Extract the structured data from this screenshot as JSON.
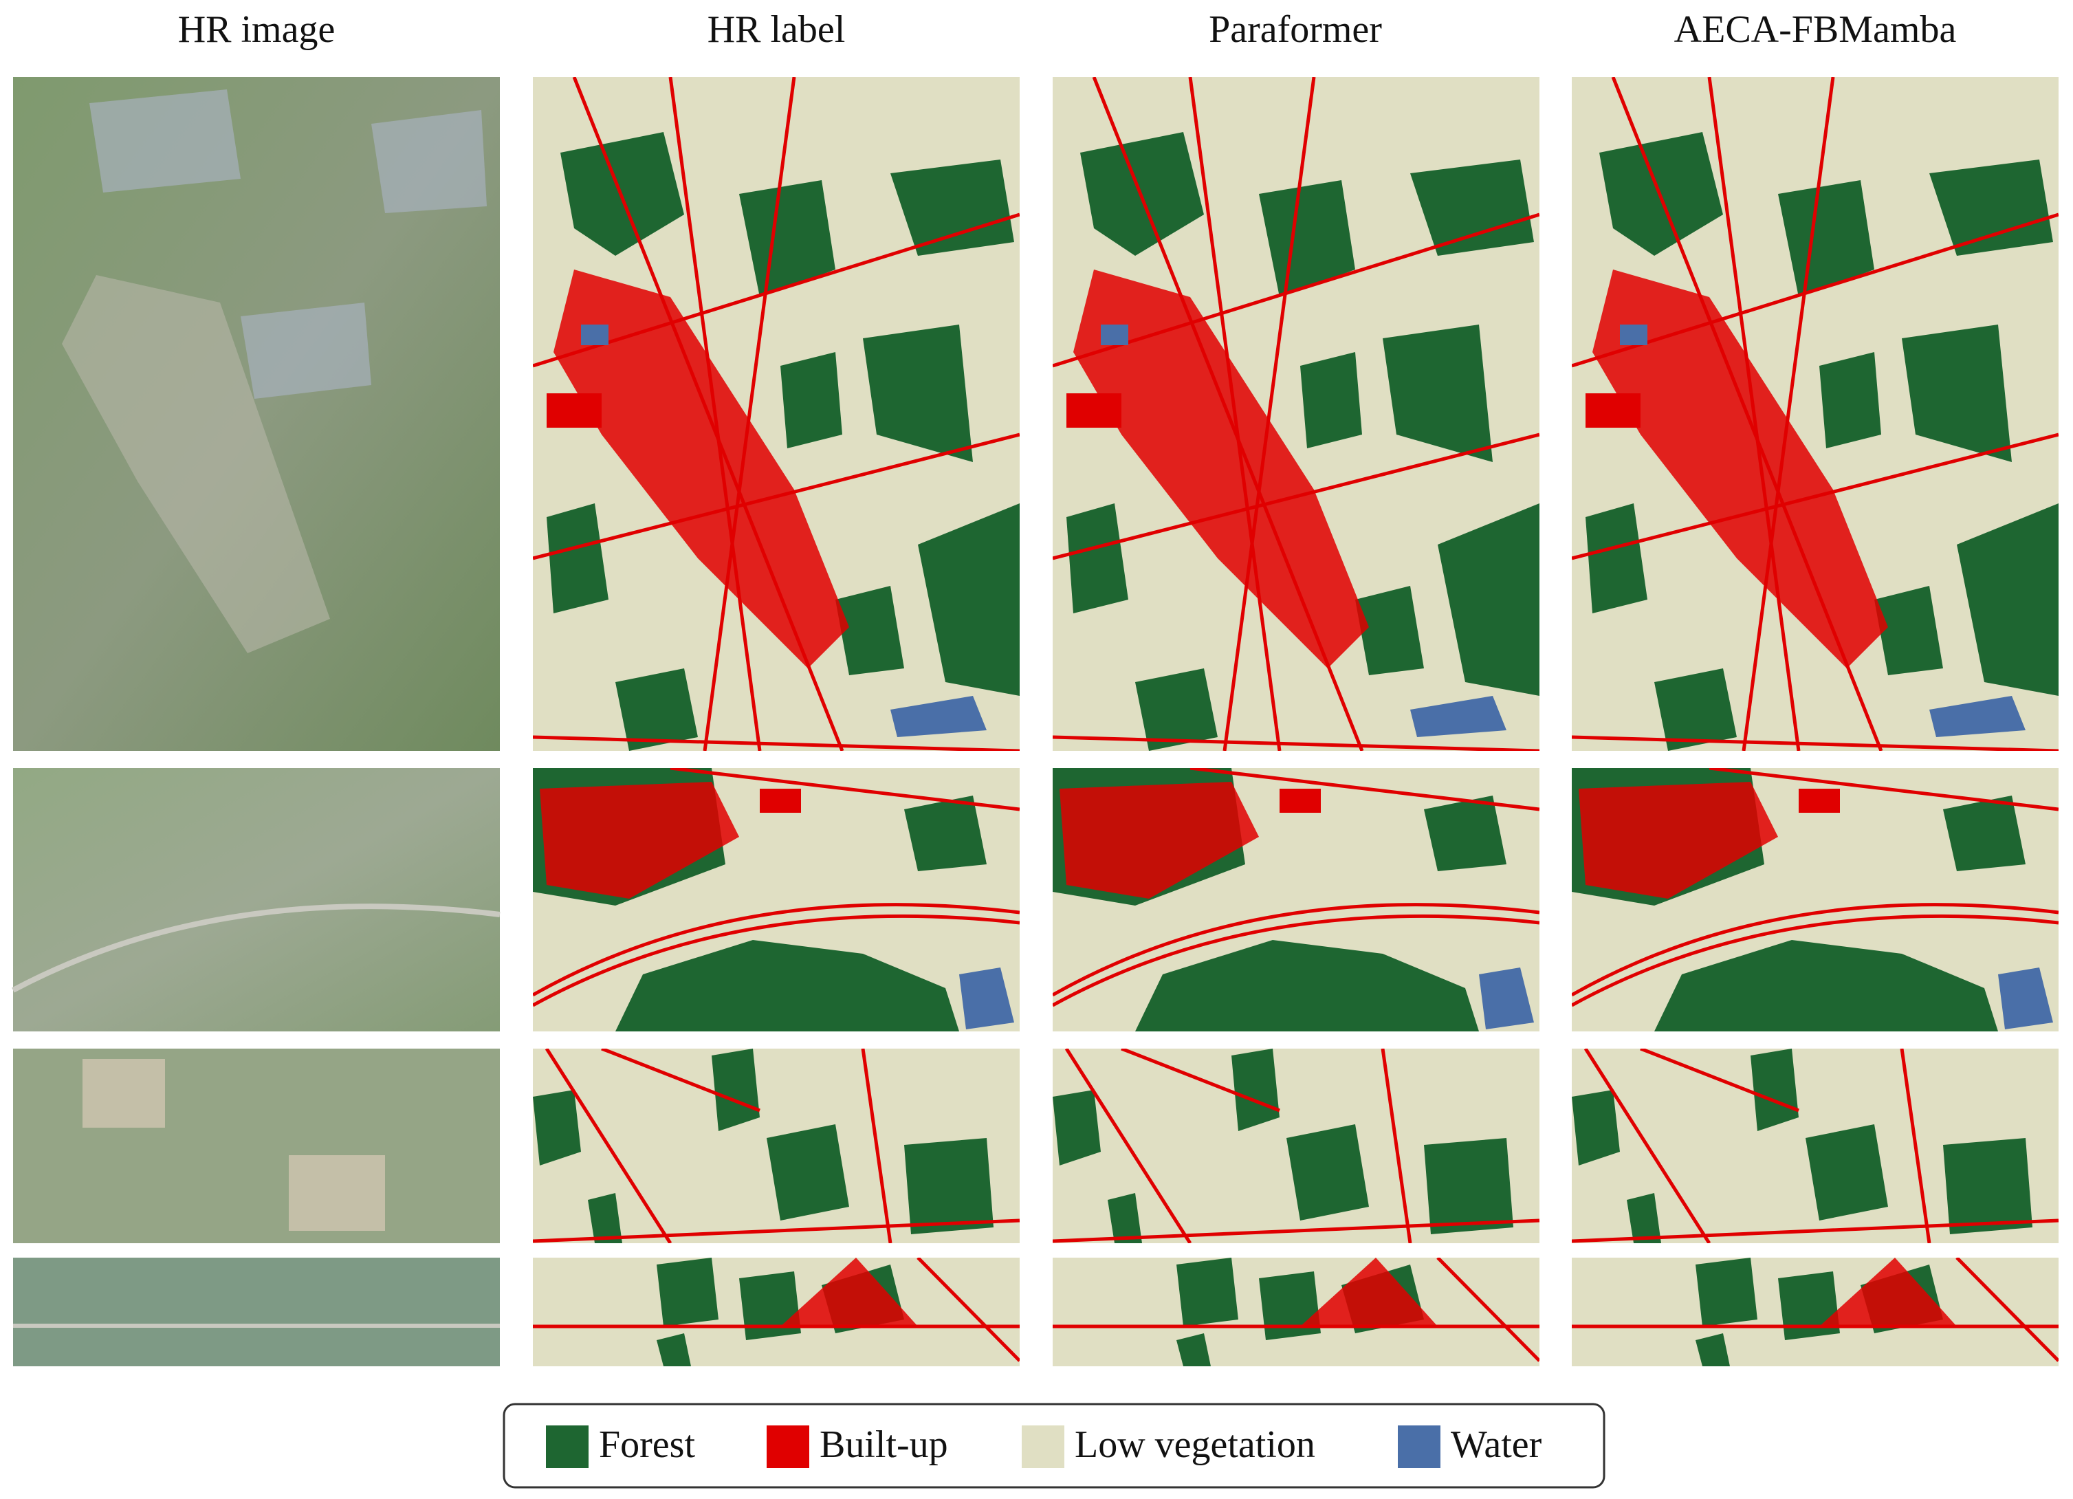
{
  "columns": [
    "HR image",
    "HR label",
    "Paraformer",
    "AECA-FBMamba"
  ],
  "legend": [
    {
      "label": "Forest",
      "color": "#1e6631"
    },
    {
      "label": "Built-up",
      "color": "#e00000"
    },
    {
      "label": "Low vegetation",
      "color": "#e0dfc3"
    },
    {
      "label": "Water",
      "color": "#4a6fa8"
    }
  ]
}
